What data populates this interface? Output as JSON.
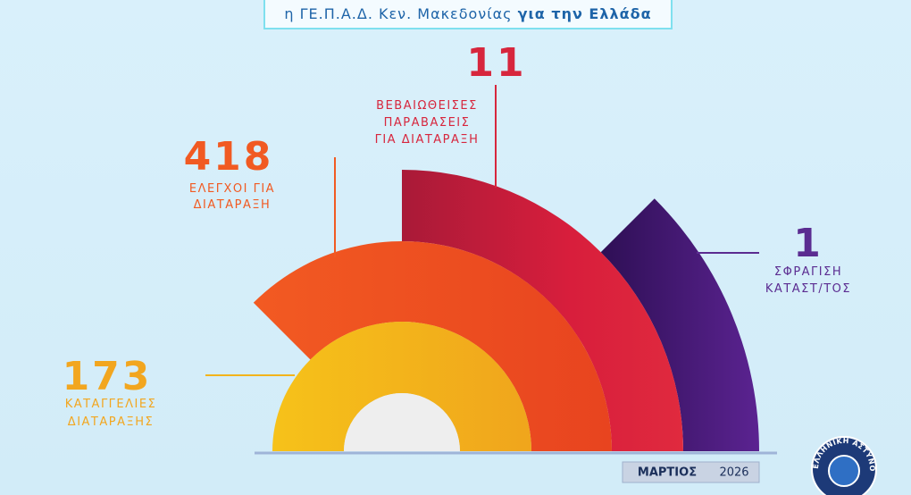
{
  "header": {
    "prefix": "η ΓΕ.Π.Α.Δ. Κεν. Μακεδονίας",
    "emphasis": "για την Ελλάδα"
  },
  "stats": [
    {
      "value": 173,
      "label_lines": [
        "ΚΑΤΑΓΓΕΛΙΕΣ",
        "ΔΙΑΤΑΡΑΞΗΣ"
      ]
    },
    {
      "value": 418,
      "label_lines": [
        "ΕΛΕΓΧΟΙ ΓΙΑ",
        "ΔΙΑΤΑΡΑΞΗ"
      ]
    },
    {
      "value": 11,
      "label_lines": [
        "ΒΕΒΑΙΩΘΕΙΣΕΣ",
        "ΠΑΡΑΒΑΣΕΙΣ",
        "ΓΙΑ ΔΙΑΤΑΡΑΞΗ"
      ]
    },
    {
      "value": 1,
      "label_lines": [
        "ΣΦΡΑΓΙΣΗ",
        "ΚΑΤΑΣΤ/ΤΟΣ"
      ]
    }
  ],
  "footer": {
    "month": "ΜΑΡΤΙΟΣ",
    "year": 2026
  },
  "logo": {
    "text": "ΕΛΛΗΝΙΚΗ ΑΣΤΥΝΟΜΙΑ"
  }
}
